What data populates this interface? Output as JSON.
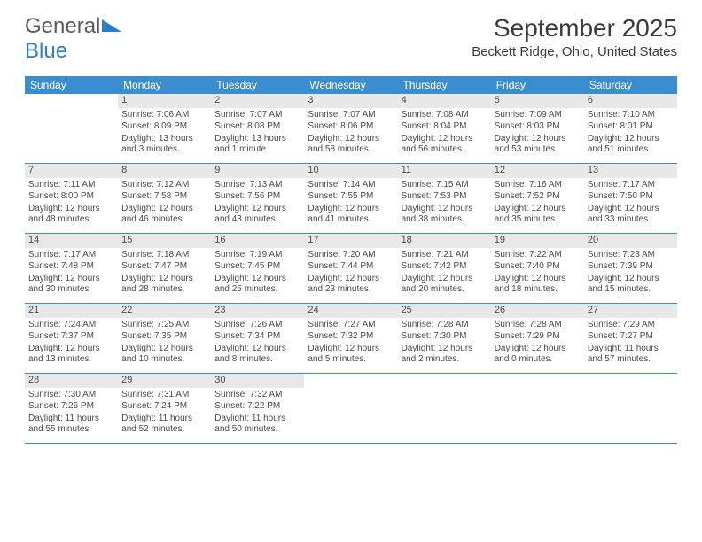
{
  "logo": {
    "text1": "General",
    "text2": "Blue"
  },
  "title": "September 2025",
  "location": "Beckett Ridge, Ohio, United States",
  "weekdays": [
    "Sunday",
    "Monday",
    "Tuesday",
    "Wednesday",
    "Thursday",
    "Friday",
    "Saturday"
  ],
  "colors": {
    "header_bg": "#3a8ecf",
    "header_text": "#ffffff",
    "daynum_bg": "#e8e8e8",
    "row_border": "#3a8ecf",
    "text": "#4a4a4a",
    "logo_blue": "#2a7ec6"
  },
  "weeks": [
    [
      null,
      {
        "n": "1",
        "sr": "Sunrise: 7:06 AM",
        "ss": "Sunset: 8:09 PM",
        "dl": "Daylight: 13 hours and 3 minutes."
      },
      {
        "n": "2",
        "sr": "Sunrise: 7:07 AM",
        "ss": "Sunset: 8:08 PM",
        "dl": "Daylight: 13 hours and 1 minute."
      },
      {
        "n": "3",
        "sr": "Sunrise: 7:07 AM",
        "ss": "Sunset: 8:06 PM",
        "dl": "Daylight: 12 hours and 58 minutes."
      },
      {
        "n": "4",
        "sr": "Sunrise: 7:08 AM",
        "ss": "Sunset: 8:04 PM",
        "dl": "Daylight: 12 hours and 56 minutes."
      },
      {
        "n": "5",
        "sr": "Sunrise: 7:09 AM",
        "ss": "Sunset: 8:03 PM",
        "dl": "Daylight: 12 hours and 53 minutes."
      },
      {
        "n": "6",
        "sr": "Sunrise: 7:10 AM",
        "ss": "Sunset: 8:01 PM",
        "dl": "Daylight: 12 hours and 51 minutes."
      }
    ],
    [
      {
        "n": "7",
        "sr": "Sunrise: 7:11 AM",
        "ss": "Sunset: 8:00 PM",
        "dl": "Daylight: 12 hours and 48 minutes."
      },
      {
        "n": "8",
        "sr": "Sunrise: 7:12 AM",
        "ss": "Sunset: 7:58 PM",
        "dl": "Daylight: 12 hours and 46 minutes."
      },
      {
        "n": "9",
        "sr": "Sunrise: 7:13 AM",
        "ss": "Sunset: 7:56 PM",
        "dl": "Daylight: 12 hours and 43 minutes."
      },
      {
        "n": "10",
        "sr": "Sunrise: 7:14 AM",
        "ss": "Sunset: 7:55 PM",
        "dl": "Daylight: 12 hours and 41 minutes."
      },
      {
        "n": "11",
        "sr": "Sunrise: 7:15 AM",
        "ss": "Sunset: 7:53 PM",
        "dl": "Daylight: 12 hours and 38 minutes."
      },
      {
        "n": "12",
        "sr": "Sunrise: 7:16 AM",
        "ss": "Sunset: 7:52 PM",
        "dl": "Daylight: 12 hours and 35 minutes."
      },
      {
        "n": "13",
        "sr": "Sunrise: 7:17 AM",
        "ss": "Sunset: 7:50 PM",
        "dl": "Daylight: 12 hours and 33 minutes."
      }
    ],
    [
      {
        "n": "14",
        "sr": "Sunrise: 7:17 AM",
        "ss": "Sunset: 7:48 PM",
        "dl": "Daylight: 12 hours and 30 minutes."
      },
      {
        "n": "15",
        "sr": "Sunrise: 7:18 AM",
        "ss": "Sunset: 7:47 PM",
        "dl": "Daylight: 12 hours and 28 minutes."
      },
      {
        "n": "16",
        "sr": "Sunrise: 7:19 AM",
        "ss": "Sunset: 7:45 PM",
        "dl": "Daylight: 12 hours and 25 minutes."
      },
      {
        "n": "17",
        "sr": "Sunrise: 7:20 AM",
        "ss": "Sunset: 7:44 PM",
        "dl": "Daylight: 12 hours and 23 minutes."
      },
      {
        "n": "18",
        "sr": "Sunrise: 7:21 AM",
        "ss": "Sunset: 7:42 PM",
        "dl": "Daylight: 12 hours and 20 minutes."
      },
      {
        "n": "19",
        "sr": "Sunrise: 7:22 AM",
        "ss": "Sunset: 7:40 PM",
        "dl": "Daylight: 12 hours and 18 minutes."
      },
      {
        "n": "20",
        "sr": "Sunrise: 7:23 AM",
        "ss": "Sunset: 7:39 PM",
        "dl": "Daylight: 12 hours and 15 minutes."
      }
    ],
    [
      {
        "n": "21",
        "sr": "Sunrise: 7:24 AM",
        "ss": "Sunset: 7:37 PM",
        "dl": "Daylight: 12 hours and 13 minutes."
      },
      {
        "n": "22",
        "sr": "Sunrise: 7:25 AM",
        "ss": "Sunset: 7:35 PM",
        "dl": "Daylight: 12 hours and 10 minutes."
      },
      {
        "n": "23",
        "sr": "Sunrise: 7:26 AM",
        "ss": "Sunset: 7:34 PM",
        "dl": "Daylight: 12 hours and 8 minutes."
      },
      {
        "n": "24",
        "sr": "Sunrise: 7:27 AM",
        "ss": "Sunset: 7:32 PM",
        "dl": "Daylight: 12 hours and 5 minutes."
      },
      {
        "n": "25",
        "sr": "Sunrise: 7:28 AM",
        "ss": "Sunset: 7:30 PM",
        "dl": "Daylight: 12 hours and 2 minutes."
      },
      {
        "n": "26",
        "sr": "Sunrise: 7:28 AM",
        "ss": "Sunset: 7:29 PM",
        "dl": "Daylight: 12 hours and 0 minutes."
      },
      {
        "n": "27",
        "sr": "Sunrise: 7:29 AM",
        "ss": "Sunset: 7:27 PM",
        "dl": "Daylight: 11 hours and 57 minutes."
      }
    ],
    [
      {
        "n": "28",
        "sr": "Sunrise: 7:30 AM",
        "ss": "Sunset: 7:26 PM",
        "dl": "Daylight: 11 hours and 55 minutes."
      },
      {
        "n": "29",
        "sr": "Sunrise: 7:31 AM",
        "ss": "Sunset: 7:24 PM",
        "dl": "Daylight: 11 hours and 52 minutes."
      },
      {
        "n": "30",
        "sr": "Sunrise: 7:32 AM",
        "ss": "Sunset: 7:22 PM",
        "dl": "Daylight: 11 hours and 50 minutes."
      },
      null,
      null,
      null,
      null
    ]
  ]
}
